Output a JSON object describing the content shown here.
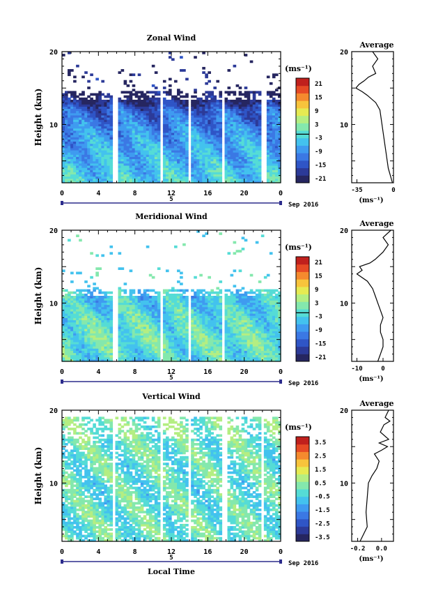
{
  "colors": {
    "colormap": [
      "#262660",
      "#2c3a98",
      "#2f55c6",
      "#3b78e4",
      "#3f9bf0",
      "#43c2ee",
      "#55dcd6",
      "#84e8ad",
      "#b4ee82",
      "#e6ea52",
      "#f8c43c",
      "#f58a2e",
      "#e64a25",
      "#c0201d"
    ],
    "contour": "#000000",
    "axis": "#000000",
    "time_bar": "#2c2c8c"
  },
  "figure": {
    "date_label": "Sep 2016",
    "xlabel": "Local Time",
    "unit_label": "(ms⁻¹)"
  },
  "chart_data": [
    {
      "type": "heatmap",
      "title": "Zonal Wind",
      "ylabel": "Height (km)",
      "xlim": [
        0,
        24
      ],
      "ylim": [
        2,
        20
      ],
      "x_ticks": [
        "0",
        "4",
        "8",
        "12",
        "16",
        "20",
        "0"
      ],
      "y_ticks": [
        "20",
        "10"
      ],
      "day_label": "5",
      "colorbar": {
        "label": "(ms⁻¹)",
        "ticks": [
          "21",
          "15",
          "9",
          "3",
          "-3",
          "-9",
          "-15",
          "-21"
        ],
        "range": [
          -24,
          24
        ]
      },
      "data_gaps_hours": [
        [
          5.6,
          6.0
        ],
        [
          10.7,
          11.1
        ],
        [
          13.8,
          14.2
        ],
        [
          17.5,
          17.9
        ],
        [
          22.0,
          22.4
        ]
      ],
      "coverage_top_km": 14.5,
      "approx_profile": {
        "km": [
          2,
          5,
          8,
          10,
          12,
          13,
          14
        ],
        "ms": [
          -3,
          -6,
          -8,
          -11,
          -14,
          -20,
          -24
        ]
      },
      "average": {
        "title": "Average",
        "xlabel": "(ms⁻¹)",
        "x_ticks": [
          "-35",
          "0"
        ],
        "y_ticks": [
          "20",
          "10"
        ],
        "xlim": [
          -40,
          0
        ],
        "ylim": [
          2,
          20
        ],
        "profile": {
          "height_km": [
            2,
            3,
            4,
            5,
            6,
            7,
            8,
            9,
            10,
            11,
            12,
            13,
            14,
            14.5,
            15,
            15.5,
            16,
            16.5,
            17,
            18,
            19,
            20
          ],
          "value": [
            -1,
            -3,
            -5,
            -6,
            -7,
            -8,
            -9,
            -10,
            -11,
            -12,
            -13,
            -17,
            -25,
            -30,
            -36,
            -33,
            -28,
            -24,
            -17,
            -20,
            -15,
            -20
          ]
        }
      }
    },
    {
      "type": "heatmap",
      "title": "Meridional Wind",
      "ylabel": "Height (km)",
      "xlim": [
        0,
        24
      ],
      "ylim": [
        2,
        20
      ],
      "x_ticks": [
        "0",
        "4",
        "8",
        "12",
        "16",
        "20",
        "0"
      ],
      "y_ticks": [
        "20",
        "10"
      ],
      "day_label": "5",
      "colorbar": {
        "label": "(ms⁻¹)",
        "ticks": [
          "21",
          "15",
          "9",
          "3",
          "-3",
          "-9",
          "-15",
          "-21"
        ],
        "range": [
          -24,
          24
        ]
      },
      "data_gaps_hours": [
        [
          5.6,
          6.0
        ],
        [
          10.7,
          11.1
        ],
        [
          13.8,
          14.2
        ],
        [
          17.5,
          17.9
        ]
      ],
      "coverage_top_km": 12.0,
      "approx_profile": {
        "km": [
          2,
          5,
          8,
          10,
          12
        ],
        "ms": [
          -3,
          0,
          -2,
          -4,
          -6
        ]
      },
      "average": {
        "title": "Average",
        "xlabel": "(ms⁻¹)",
        "x_ticks": [
          "-10",
          "0"
        ],
        "y_ticks": [
          "20",
          "10"
        ],
        "xlim": [
          -12,
          4
        ],
        "ylim": [
          2,
          20
        ],
        "profile": {
          "height_km": [
            2,
            3,
            4,
            5,
            6,
            7,
            8,
            9,
            10,
            11,
            12,
            13,
            14,
            14.5,
            15,
            15.5,
            16,
            17,
            18,
            19,
            20
          ],
          "value": [
            -2,
            -1,
            0,
            0,
            -1,
            -1,
            0,
            -1,
            -2,
            -3,
            -4,
            -6,
            -10,
            -8,
            -9,
            -5,
            -3,
            0,
            2,
            0,
            3
          ]
        }
      }
    },
    {
      "type": "heatmap",
      "title": "Vertical Wind",
      "ylabel": "Height (km)",
      "xlabel": "Local Time",
      "xlim": [
        0,
        24
      ],
      "ylim": [
        2,
        20
      ],
      "x_ticks": [
        "0",
        "4",
        "8",
        "12",
        "16",
        "20",
        "0"
      ],
      "y_ticks": [
        "20",
        "10"
      ],
      "day_label": "5",
      "colorbar": {
        "label": "(ms⁻¹)",
        "ticks": [
          "3.5",
          "2.5",
          "1.5",
          "0.5",
          "-0.5",
          "-1.5",
          "-2.5",
          "-3.5"
        ],
        "range": [
          -4,
          4
        ]
      },
      "data_gaps_hours": [
        [
          5.4,
          5.8
        ],
        [
          10.7,
          11.1
        ],
        [
          13.9,
          14.3
        ],
        [
          17.6,
          18.0
        ],
        [
          21.9,
          22.3
        ]
      ],
      "coverage_top_km": 19.0,
      "approx_profile": {
        "km": [
          2,
          10,
          19
        ],
        "ms": [
          -0.2,
          -0.3,
          -0.1
        ]
      },
      "average": {
        "title": "Average",
        "xlabel": "(ms⁻¹)",
        "x_ticks": [
          "-0.2",
          "0.0"
        ],
        "y_ticks": [
          "20",
          "10"
        ],
        "xlim": [
          -0.25,
          0.1
        ],
        "ylim": [
          2,
          20
        ],
        "profile": {
          "height_km": [
            2,
            4,
            6,
            8,
            10,
            11,
            12,
            13,
            14,
            14.5,
            15,
            15.5,
            16,
            17,
            18,
            18.5,
            19,
            20
          ],
          "value": [
            -0.18,
            -0.12,
            -0.13,
            -0.12,
            -0.11,
            -0.08,
            -0.04,
            -0.02,
            -0.06,
            0.0,
            0.05,
            -0.02,
            0.06,
            -0.01,
            0.02,
            0.07,
            0.03,
            0.06
          ]
        }
      }
    }
  ]
}
